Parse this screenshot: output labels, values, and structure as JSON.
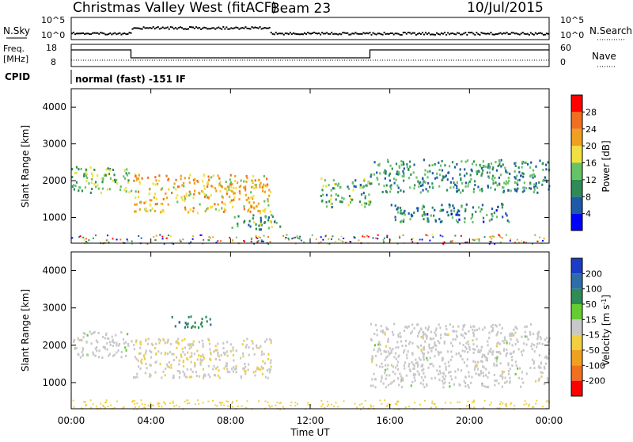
{
  "header": {
    "station": "Christmas Valley West (fitACF)",
    "beam": "Beam 23",
    "date": "10/Jul/2015"
  },
  "panels": {
    "nsky": {
      "left_label": "N.Sky",
      "right_label": "N.Search",
      "left_ticks": [
        "10^5",
        "10^0"
      ],
      "right_ticks": [
        "10^5",
        "10^0"
      ]
    },
    "freq": {
      "left_label_1": "Freq.",
      "left_label_2": "[MHz]",
      "right_label": "Nave",
      "left_ticks": [
        "18",
        "8"
      ],
      "right_ticks": [
        "60",
        "0"
      ]
    },
    "cpid": {
      "label": "CPID",
      "text": "normal (fast) -151 IF"
    }
  },
  "chart_data": [
    {
      "type": "heatmap",
      "name": "power",
      "ylabel": "Slant Range [km]",
      "xlabel": "",
      "ylim": [
        300,
        4500
      ],
      "yticks": [
        "1000",
        "2000",
        "3000",
        "4000"
      ],
      "colorbar": {
        "label": "Power [dB]",
        "ticks": [
          "4",
          "8",
          "12",
          "16",
          "20",
          "24",
          "28"
        ],
        "colors": [
          "#0000ff",
          "#1e5aa8",
          "#2e8b57",
          "#66c266",
          "#f0e040",
          "#f0a020",
          "#f07020",
          "#ff0000"
        ]
      },
      "bands": [
        {
          "t": [
            0.0,
            3.0
          ],
          "r": [
            1700,
            2400
          ],
          "power": 14
        },
        {
          "t": [
            3.1,
            10.0
          ],
          "r": [
            1150,
            2200
          ],
          "power": 20
        },
        {
          "t": [
            8.0,
            10.5
          ],
          "r": [
            700,
            1100
          ],
          "power": 12
        },
        {
          "t": [
            12.5,
            15.0
          ],
          "r": [
            1300,
            2100
          ],
          "power": 13
        },
        {
          "t": [
            15.0,
            24.0
          ],
          "r": [
            1700,
            2600
          ],
          "power": 11
        },
        {
          "t": [
            16.0,
            22.0
          ],
          "r": [
            900,
            1400
          ],
          "power": 10
        }
      ]
    },
    {
      "type": "heatmap",
      "name": "velocity",
      "ylabel": "Slant Range [km]",
      "xlabel": "Time UT",
      "ylim": [
        300,
        4500
      ],
      "yticks": [
        "1000",
        "2000",
        "3000",
        "4000"
      ],
      "xticks": [
        "00:00",
        "04:00",
        "08:00",
        "12:00",
        "16:00",
        "20:00",
        "00:00"
      ],
      "colorbar": {
        "label": "Velocity [m s^-1]",
        "ticks": [
          "200",
          "100",
          "50",
          "15",
          "-15",
          "-50",
          "-100",
          "-200"
        ],
        "colors": [
          "#1a3cc8",
          "#2e6ea8",
          "#2e8b57",
          "#66cc33",
          "#c8c8c8",
          "#f0d040",
          "#f0a020",
          "#f07020",
          "#ff0000"
        ]
      },
      "bands": [
        {
          "t": [
            0.0,
            3.0
          ],
          "r": [
            1700,
            2400
          ],
          "velocity": 0
        },
        {
          "t": [
            3.1,
            10.0
          ],
          "r": [
            1150,
            2200
          ],
          "velocity": -20
        },
        {
          "t": [
            5.0,
            7.0
          ],
          "r": [
            2500,
            2800
          ],
          "velocity": 120
        },
        {
          "t": [
            15.0,
            24.0
          ],
          "r": [
            900,
            2600
          ],
          "velocity": 0
        }
      ]
    }
  ]
}
